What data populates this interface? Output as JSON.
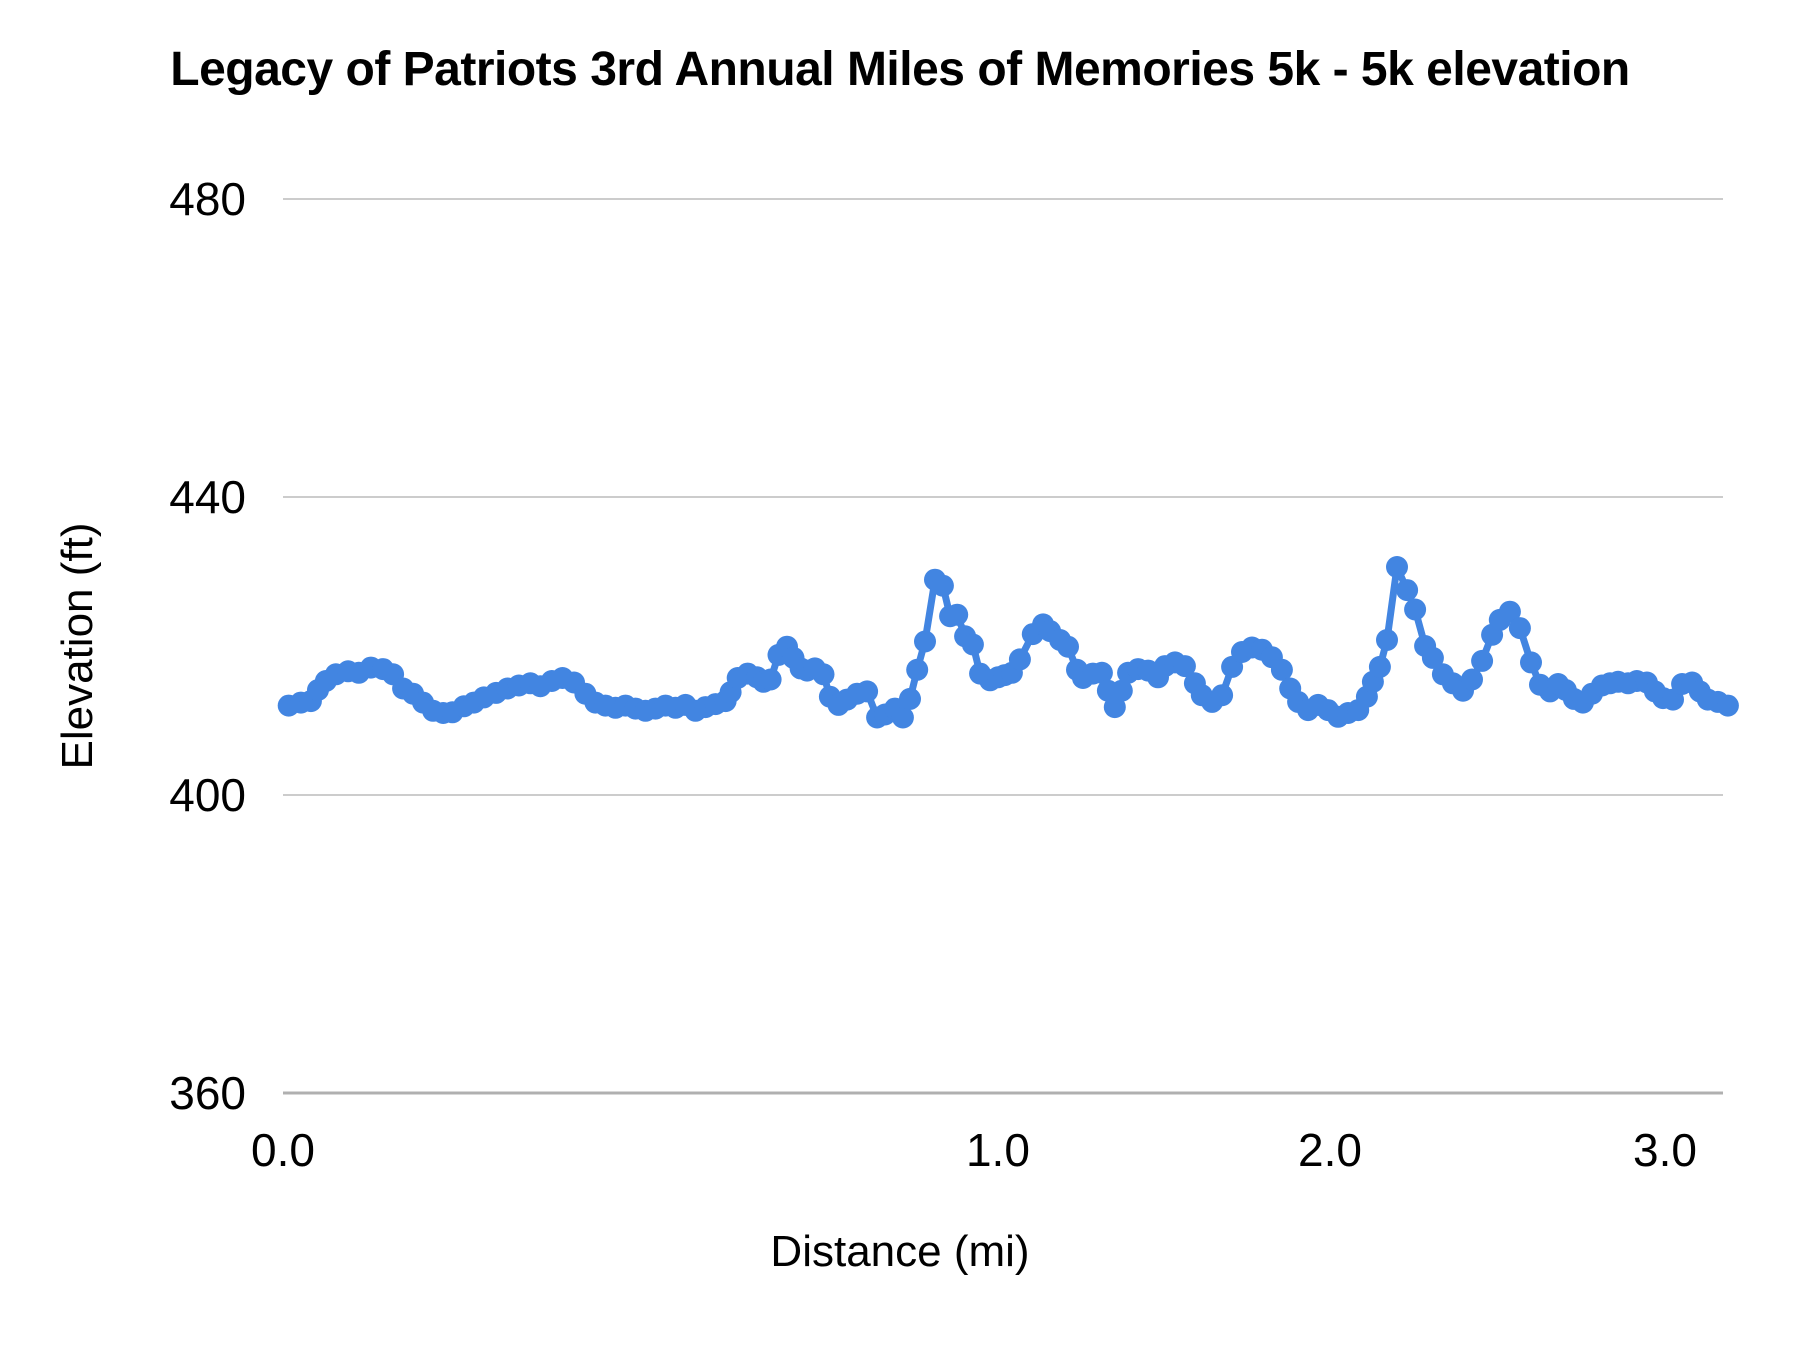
{
  "title": "Legacy of Patriots 3rd Annual Miles of Memories 5k - 5k elevation",
  "colors": {
    "series_blue": "#4285E1",
    "gridline": "#CCCCCC",
    "baseline": "#B0B0B0",
    "text": "#000000"
  },
  "chart_data": {
    "type": "line",
    "title": "Legacy of Patriots 3rd Annual Miles of Memories 5k - 5k elevation",
    "xlabel": "Distance (mi)",
    "ylabel": "Elevation (ft)",
    "ylim": [
      360,
      480
    ],
    "y_ticks": [
      480,
      440,
      400,
      360
    ],
    "x_ticks": [
      {
        "label": "0.0",
        "mile": 0
      },
      {
        "label": "1.0",
        "mile": 1
      },
      {
        "label": "2.0",
        "mile": 2
      },
      {
        "label": "3.0",
        "mile": 3
      }
    ],
    "grid": "horizontal-only",
    "legend_position": "none",
    "marker_style": "point-with-line",
    "x_scale_anchors": [
      [
        0,
        0.0
      ],
      [
        1,
        0.4965
      ],
      [
        2,
        0.7271
      ],
      [
        3,
        0.9597
      ]
    ],
    "series": [
      {
        "name": "5k elevation",
        "points": [
          [
            0.008,
            412.0
          ],
          [
            0.025,
            412.4
          ],
          [
            0.039,
            412.6
          ],
          [
            0.049,
            414.1
          ],
          [
            0.06,
            415.3
          ],
          [
            0.074,
            416.2
          ],
          [
            0.091,
            416.6
          ],
          [
            0.106,
            416.4
          ],
          [
            0.123,
            417.1
          ],
          [
            0.14,
            416.9
          ],
          [
            0.154,
            416.2
          ],
          [
            0.168,
            414.3
          ],
          [
            0.182,
            413.6
          ],
          [
            0.196,
            412.4
          ],
          [
            0.21,
            411.3
          ],
          [
            0.224,
            411.0
          ],
          [
            0.237,
            411.1
          ],
          [
            0.253,
            411.9
          ],
          [
            0.267,
            412.4
          ],
          [
            0.281,
            413.1
          ],
          [
            0.298,
            413.7
          ],
          [
            0.314,
            414.3
          ],
          [
            0.33,
            414.7
          ],
          [
            0.346,
            415.0
          ],
          [
            0.36,
            414.6
          ],
          [
            0.376,
            415.3
          ],
          [
            0.391,
            415.7
          ],
          [
            0.407,
            415.1
          ],
          [
            0.423,
            413.6
          ],
          [
            0.437,
            412.4
          ],
          [
            0.451,
            412.0
          ],
          [
            0.465,
            411.7
          ],
          [
            0.479,
            412.0
          ],
          [
            0.493,
            411.6
          ],
          [
            0.507,
            411.3
          ],
          [
            0.521,
            411.6
          ],
          [
            0.535,
            412.0
          ],
          [
            0.549,
            411.7
          ],
          [
            0.563,
            412.1
          ],
          [
            0.577,
            411.3
          ],
          [
            0.591,
            411.8
          ],
          [
            0.605,
            412.2
          ],
          [
            0.619,
            412.6
          ],
          [
            0.626,
            413.8
          ],
          [
            0.636,
            415.7
          ],
          [
            0.65,
            416.3
          ],
          [
            0.663,
            415.8
          ],
          [
            0.672,
            415.2
          ],
          [
            0.682,
            415.5
          ],
          [
            0.693,
            418.8
          ],
          [
            0.705,
            419.9
          ],
          [
            0.714,
            418.4
          ],
          [
            0.724,
            417.0
          ],
          [
            0.733,
            416.7
          ],
          [
            0.744,
            417.0
          ],
          [
            0.756,
            416.2
          ],
          [
            0.765,
            413.2
          ],
          [
            0.777,
            412.1
          ],
          [
            0.789,
            412.8
          ],
          [
            0.803,
            413.6
          ],
          [
            0.817,
            413.9
          ],
          [
            0.831,
            410.4
          ],
          [
            0.842,
            410.8
          ],
          [
            0.856,
            411.6
          ],
          [
            0.867,
            410.4
          ],
          [
            0.877,
            412.9
          ],
          [
            0.887,
            416.8
          ],
          [
            0.898,
            420.6
          ],
          [
            0.912,
            428.9
          ],
          [
            0.923,
            428.1
          ],
          [
            0.933,
            424.0
          ],
          [
            0.943,
            424.2
          ],
          [
            0.954,
            421.3
          ],
          [
            0.965,
            420.2
          ],
          [
            0.975,
            416.3
          ],
          [
            0.989,
            415.4
          ],
          [
            1.0,
            415.8
          ],
          [
            1.021,
            416.1
          ],
          [
            1.042,
            416.4
          ],
          [
            1.066,
            418.2
          ],
          [
            1.105,
            421.6
          ],
          [
            1.136,
            422.9
          ],
          [
            1.157,
            422.0
          ],
          [
            1.187,
            420.8
          ],
          [
            1.211,
            419.9
          ],
          [
            1.238,
            416.8
          ],
          [
            1.256,
            415.7
          ],
          [
            1.286,
            416.3
          ],
          [
            1.313,
            416.4
          ],
          [
            1.331,
            414.0
          ],
          [
            1.352,
            411.8
          ],
          [
            1.373,
            414.0
          ],
          [
            1.392,
            416.4
          ],
          [
            1.422,
            416.9
          ],
          [
            1.452,
            416.7
          ],
          [
            1.482,
            415.8
          ],
          [
            1.503,
            417.3
          ],
          [
            1.533,
            417.8
          ],
          [
            1.563,
            417.3
          ],
          [
            1.593,
            415.0
          ],
          [
            1.614,
            413.4
          ],
          [
            1.645,
            412.5
          ],
          [
            1.675,
            413.4
          ],
          [
            1.705,
            417.2
          ],
          [
            1.735,
            419.2
          ],
          [
            1.765,
            419.8
          ],
          [
            1.795,
            419.5
          ],
          [
            1.825,
            418.5
          ],
          [
            1.855,
            416.8
          ],
          [
            1.88,
            414.3
          ],
          [
            1.904,
            412.5
          ],
          [
            1.934,
            411.4
          ],
          [
            1.964,
            412.1
          ],
          [
            1.994,
            411.4
          ],
          [
            2.024,
            410.5
          ],
          [
            2.054,
            411.0
          ],
          [
            2.084,
            411.4
          ],
          [
            2.11,
            413.2
          ],
          [
            2.128,
            415.2
          ],
          [
            2.149,
            417.2
          ],
          [
            2.17,
            420.8
          ],
          [
            2.2,
            430.6
          ],
          [
            2.23,
            427.5
          ],
          [
            2.254,
            424.9
          ],
          [
            2.284,
            420.0
          ],
          [
            2.307,
            418.4
          ],
          [
            2.337,
            416.2
          ],
          [
            2.367,
            415.0
          ],
          [
            2.397,
            414.0
          ],
          [
            2.424,
            415.5
          ],
          [
            2.454,
            418.0
          ],
          [
            2.484,
            421.5
          ],
          [
            2.507,
            423.5
          ],
          [
            2.537,
            424.6
          ],
          [
            2.567,
            422.4
          ],
          [
            2.6,
            417.8
          ],
          [
            2.627,
            414.8
          ],
          [
            2.657,
            413.9
          ],
          [
            2.681,
            414.9
          ],
          [
            2.704,
            414.1
          ],
          [
            2.728,
            412.9
          ],
          [
            2.755,
            412.4
          ],
          [
            2.782,
            413.6
          ],
          [
            2.812,
            414.7
          ],
          [
            2.836,
            415.0
          ],
          [
            2.86,
            415.2
          ],
          [
            2.89,
            415.0
          ],
          [
            2.916,
            415.3
          ],
          [
            2.946,
            415.1
          ],
          [
            2.97,
            413.9
          ],
          [
            2.994,
            413.0
          ],
          [
            3.024,
            412.8
          ],
          [
            3.051,
            414.9
          ],
          [
            3.081,
            415.1
          ],
          [
            3.104,
            413.9
          ],
          [
            3.128,
            412.8
          ],
          [
            3.158,
            412.5
          ],
          [
            3.188,
            412.0
          ]
        ]
      }
    ]
  }
}
